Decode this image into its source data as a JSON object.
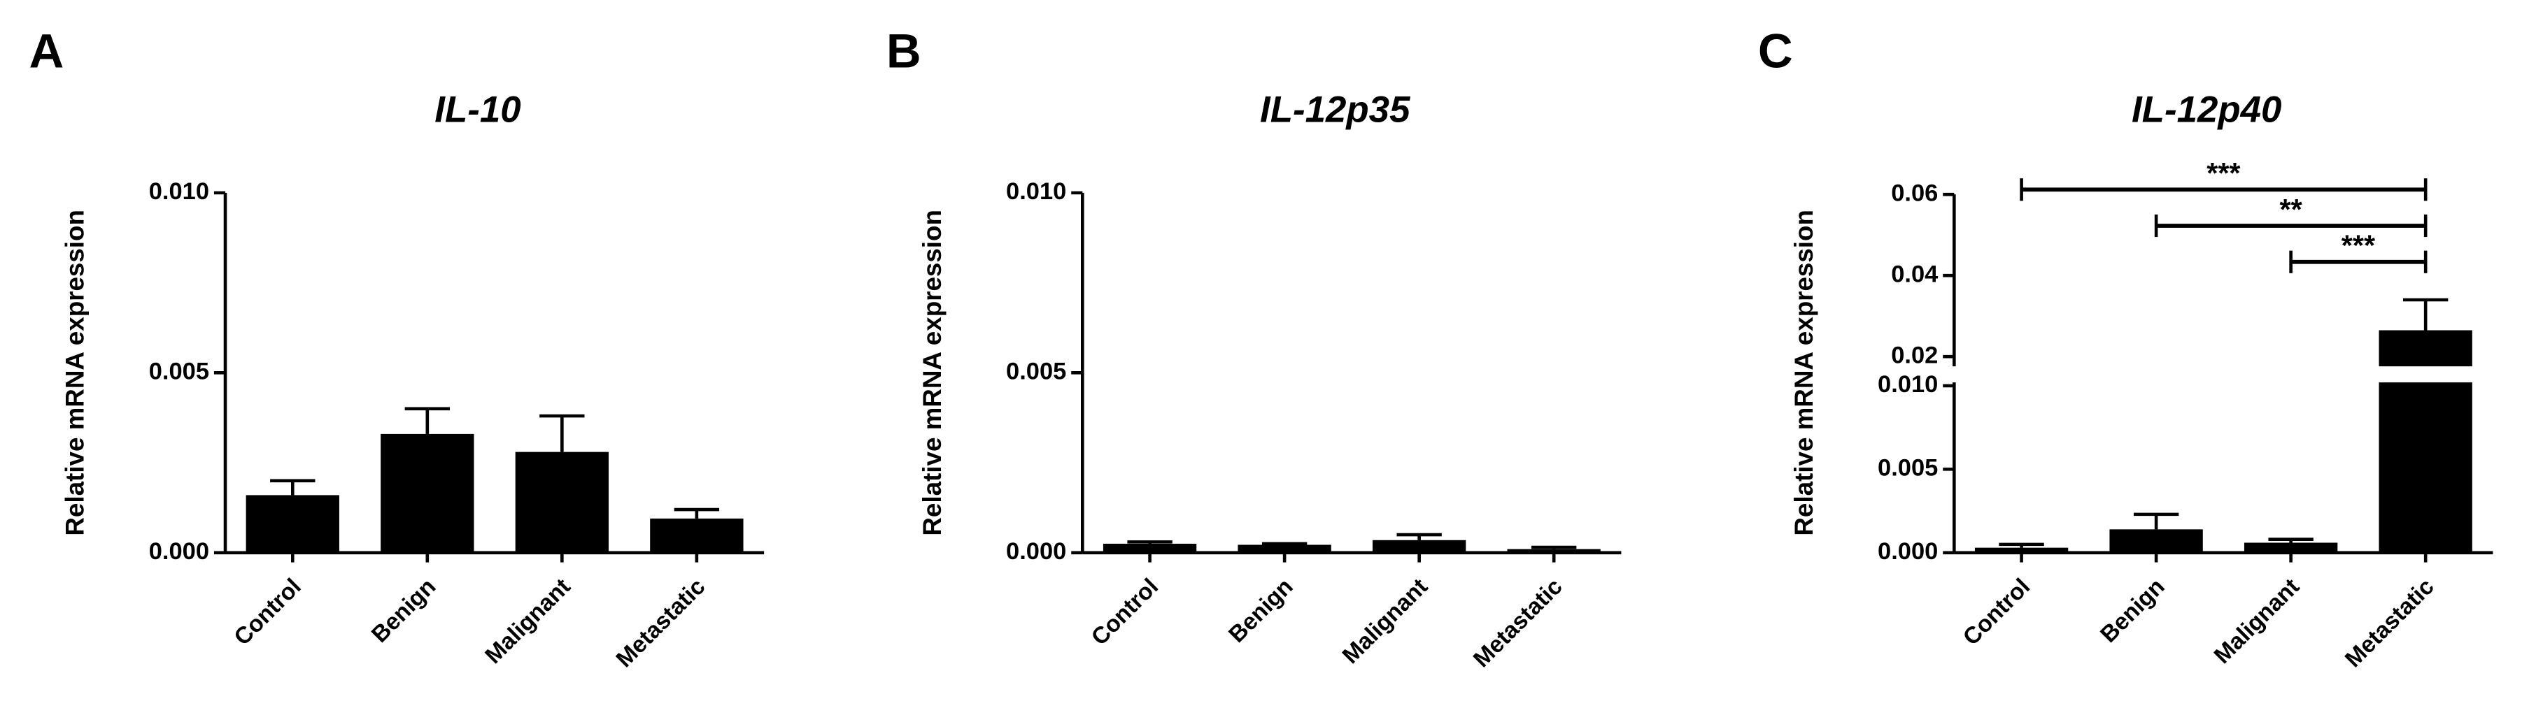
{
  "chart_data": [
    {
      "type": "bar",
      "panel": "A",
      "title": "IL-10",
      "y_label": "Relative mRNA expression",
      "color": "#000000",
      "categories": [
        "Control",
        "Benign",
        "Malignant",
        "Metastatic"
      ],
      "values": [
        0.0016,
        0.0033,
        0.0028,
        0.00095
      ],
      "errors": [
        0.0004,
        0.0007,
        0.001,
        0.00025
      ],
      "ylim": [
        0,
        0.01
      ],
      "yticks": [
        {
          "value": 0,
          "label": "0.000"
        },
        {
          "value": 0.005,
          "label": "0.005"
        },
        {
          "value": 0.01,
          "label": "0.010"
        }
      ]
    },
    {
      "type": "bar",
      "panel": "B",
      "title": "IL-12p35",
      "y_label": "Relative mRNA expression",
      "color": "#000000",
      "categories": [
        "Control",
        "Benign",
        "Malignant",
        "Metastatic"
      ],
      "values": [
        0.00025,
        0.00022,
        0.00035,
        0.0001
      ],
      "errors": [
        5e-05,
        3e-05,
        0.00015,
        5e-05
      ],
      "ylim": [
        0,
        0.01
      ],
      "yticks": [
        {
          "value": 0,
          "label": "0.000"
        },
        {
          "value": 0.005,
          "label": "0.005"
        },
        {
          "value": 0.01,
          "label": "0.010"
        }
      ]
    },
    {
      "type": "bar",
      "panel": "C",
      "title": "IL-12p40",
      "y_label": "Relative mRNA expression",
      "color": "#000000",
      "categories": [
        "Control",
        "Benign",
        "Malignant",
        "Metastatic"
      ],
      "values": [
        0.0003,
        0.0014,
        0.0006,
        0.0265
      ],
      "errors": [
        0.0002,
        0.0009,
        0.0002,
        0.0075
      ],
      "segments": [
        {
          "ylim": [
            0,
            0.0102
          ],
          "yticks": [
            {
              "value": 0,
              "label": "0.000"
            },
            {
              "value": 0.005,
              "label": "0.005"
            },
            {
              "value": 0.01,
              "label": "0.010"
            }
          ]
        },
        {
          "ylim": [
            0.0176,
            0.06
          ],
          "yticks": [
            {
              "value": 0.02,
              "label": "0.02"
            },
            {
              "value": 0.04,
              "label": "0.04"
            },
            {
              "value": 0.06,
              "label": "0.06"
            }
          ]
        }
      ],
      "comparisons": [
        {
          "label": "***",
          "groups": [
            "Control",
            "Metastatic"
          ]
        },
        {
          "label": "**",
          "groups": [
            "Benign",
            "Metastatic"
          ]
        },
        {
          "label": "***",
          "groups": [
            "Malignant",
            "Metastatic"
          ]
        }
      ]
    }
  ]
}
